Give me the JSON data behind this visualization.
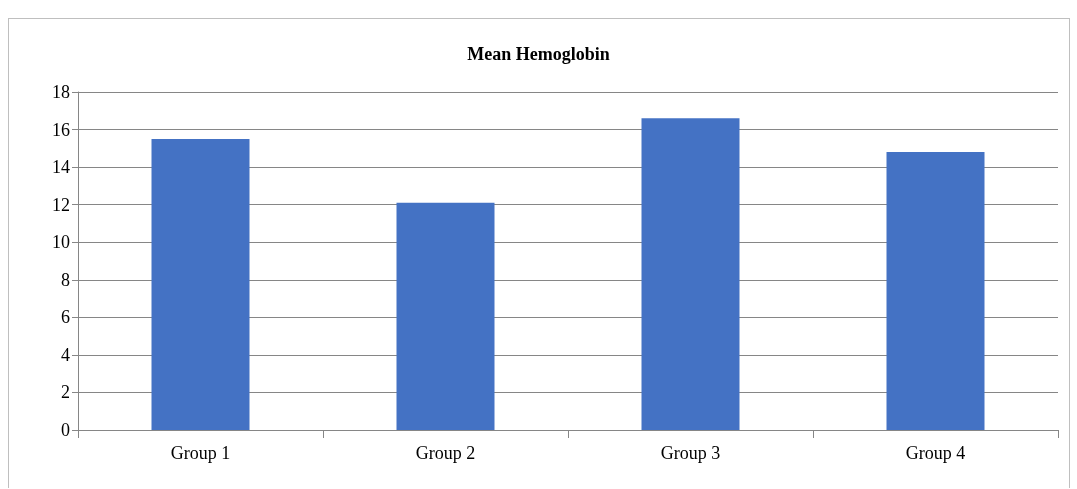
{
  "chart_data": {
    "type": "bar",
    "title": "Mean Hemoglobin",
    "categories": [
      "Group 1",
      "Group 2",
      "Group 3",
      "Group 4"
    ],
    "values": [
      15.5,
      12.1,
      16.6,
      14.8
    ],
    "color": "#4472c4",
    "ylim": [
      0,
      18
    ],
    "yticks": [
      0,
      2,
      4,
      6,
      8,
      10,
      12,
      14,
      16,
      18
    ],
    "grid": "y"
  }
}
